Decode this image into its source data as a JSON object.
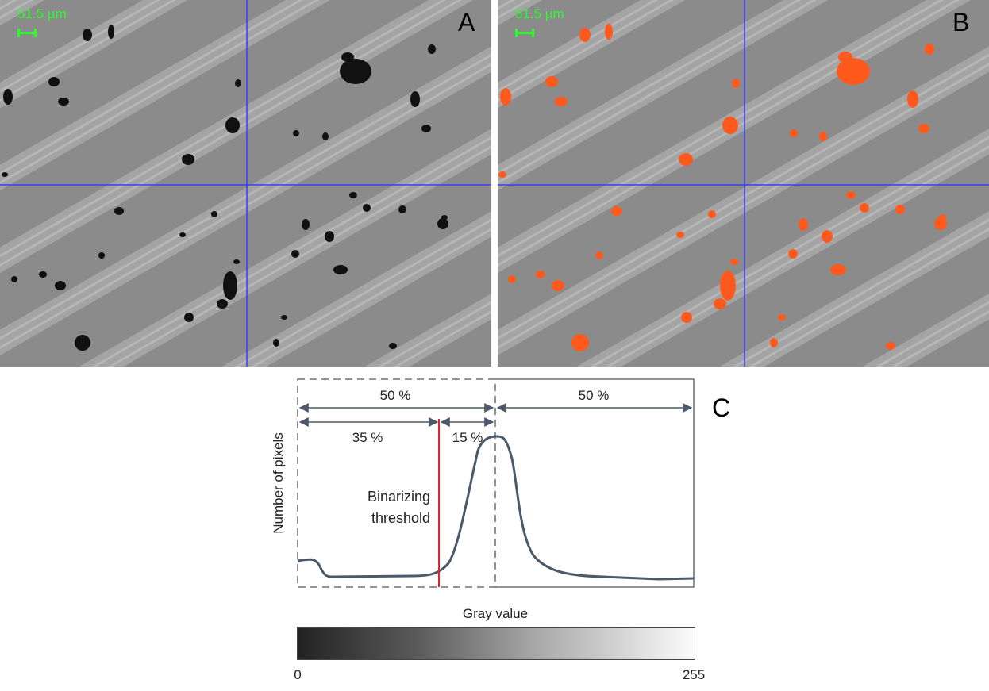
{
  "panels": {
    "a": {
      "letter": "A",
      "scale_label": "51.5 µm"
    },
    "b": {
      "letter": "B",
      "scale_label": "51.5 µm"
    },
    "c": {
      "letter": "C"
    }
  },
  "histogram": {
    "y_label": "Number of pixels",
    "x_label": "Gray value",
    "threshold_label_line1": "Binarizing",
    "threshold_label_line2": "threshold",
    "pct_left_half": "50 %",
    "pct_right_half": "50 %",
    "pct_below_threshold": "35 %",
    "pct_above_threshold": "15 %",
    "gray_min": "0",
    "gray_max": "255"
  },
  "colors": {
    "curve": "#4a5a6a",
    "threshold": "#e8202a",
    "highlight": "#ff5a1e",
    "crosshair": "#3a3aff",
    "scale": "#2bff2b"
  }
}
